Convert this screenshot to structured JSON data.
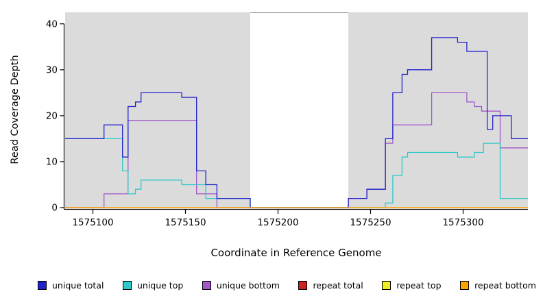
{
  "figure": {
    "background": "#FFFFFF"
  },
  "chart_data": {
    "type": "line",
    "line_style": "step",
    "title": "",
    "xlabel": "Coordinate in Reference Genome",
    "ylabel": "Read Coverage Depth",
    "xlim": [
      1575085,
      1575335
    ],
    "ylim": [
      0,
      42.5
    ],
    "xticks": [
      1575100,
      1575150,
      1575200,
      1575250,
      1575300
    ],
    "yticks": [
      0,
      10,
      20,
      30,
      40
    ],
    "grid": false,
    "legend_position": "bottom",
    "plot_background": "#DBDBDB",
    "white_region": {
      "x_start": 1575185,
      "x_end": 1575238,
      "color": "#FFFFFF"
    },
    "series": [
      {
        "name": "unique total",
        "color": "#2121CC",
        "steps": [
          [
            1575085,
            15
          ],
          [
            1575106,
            18
          ],
          [
            1575116,
            11
          ],
          [
            1575119,
            22
          ],
          [
            1575123,
            23
          ],
          [
            1575126,
            25
          ],
          [
            1575148,
            24
          ],
          [
            1575156,
            8
          ],
          [
            1575161,
            5
          ],
          [
            1575167,
            2
          ],
          [
            1575185,
            0
          ],
          [
            1575238,
            2
          ],
          [
            1575248,
            4
          ],
          [
            1575258,
            15
          ],
          [
            1575262,
            25
          ],
          [
            1575267,
            29
          ],
          [
            1575270,
            30
          ],
          [
            1575283,
            37
          ],
          [
            1575297,
            36
          ],
          [
            1575302,
            34
          ],
          [
            1575313,
            17
          ],
          [
            1575316,
            20
          ],
          [
            1575326,
            15
          ],
          [
            1575335,
            15
          ]
        ]
      },
      {
        "name": "unique top",
        "color": "#2FC9C9",
        "steps": [
          [
            1575085,
            15
          ],
          [
            1575116,
            8
          ],
          [
            1575119,
            3
          ],
          [
            1575123,
            4
          ],
          [
            1575126,
            6
          ],
          [
            1575148,
            5
          ],
          [
            1575161,
            2
          ],
          [
            1575185,
            0
          ],
          [
            1575238,
            0
          ],
          [
            1575258,
            1
          ],
          [
            1575262,
            7
          ],
          [
            1575267,
            11
          ],
          [
            1575270,
            12
          ],
          [
            1575297,
            11
          ],
          [
            1575306,
            12
          ],
          [
            1575311,
            14
          ],
          [
            1575320,
            2
          ],
          [
            1575335,
            2
          ]
        ]
      },
      {
        "name": "unique bottom",
        "color": "#A257CB",
        "steps": [
          [
            1575085,
            0
          ],
          [
            1575106,
            3
          ],
          [
            1575119,
            19
          ],
          [
            1575156,
            3
          ],
          [
            1575167,
            0
          ],
          [
            1575185,
            0
          ],
          [
            1575238,
            2
          ],
          [
            1575248,
            4
          ],
          [
            1575258,
            14
          ],
          [
            1575262,
            18
          ],
          [
            1575283,
            25
          ],
          [
            1575302,
            23
          ],
          [
            1575306,
            22
          ],
          [
            1575310,
            21
          ],
          [
            1575320,
            13
          ],
          [
            1575335,
            13
          ]
        ]
      },
      {
        "name": "repeat total",
        "color": "#CC2222",
        "steps": [
          [
            1575085,
            0
          ],
          [
            1575335,
            0
          ]
        ]
      },
      {
        "name": "repeat top",
        "color": "#EDED1F",
        "steps": [
          [
            1575085,
            0
          ],
          [
            1575335,
            0
          ]
        ]
      },
      {
        "name": "repeat bottom",
        "color": "#FFA500",
        "steps": [
          [
            1575085,
            0
          ],
          [
            1575335,
            0
          ]
        ]
      }
    ],
    "draw_order": [
      "repeat total",
      "repeat top",
      "unique bottom",
      "unique top",
      "unique total",
      "repeat bottom"
    ],
    "legend_labels": [
      "unique total",
      "unique top",
      "unique bottom",
      "repeat total",
      "repeat top",
      "repeat bottom"
    ]
  }
}
